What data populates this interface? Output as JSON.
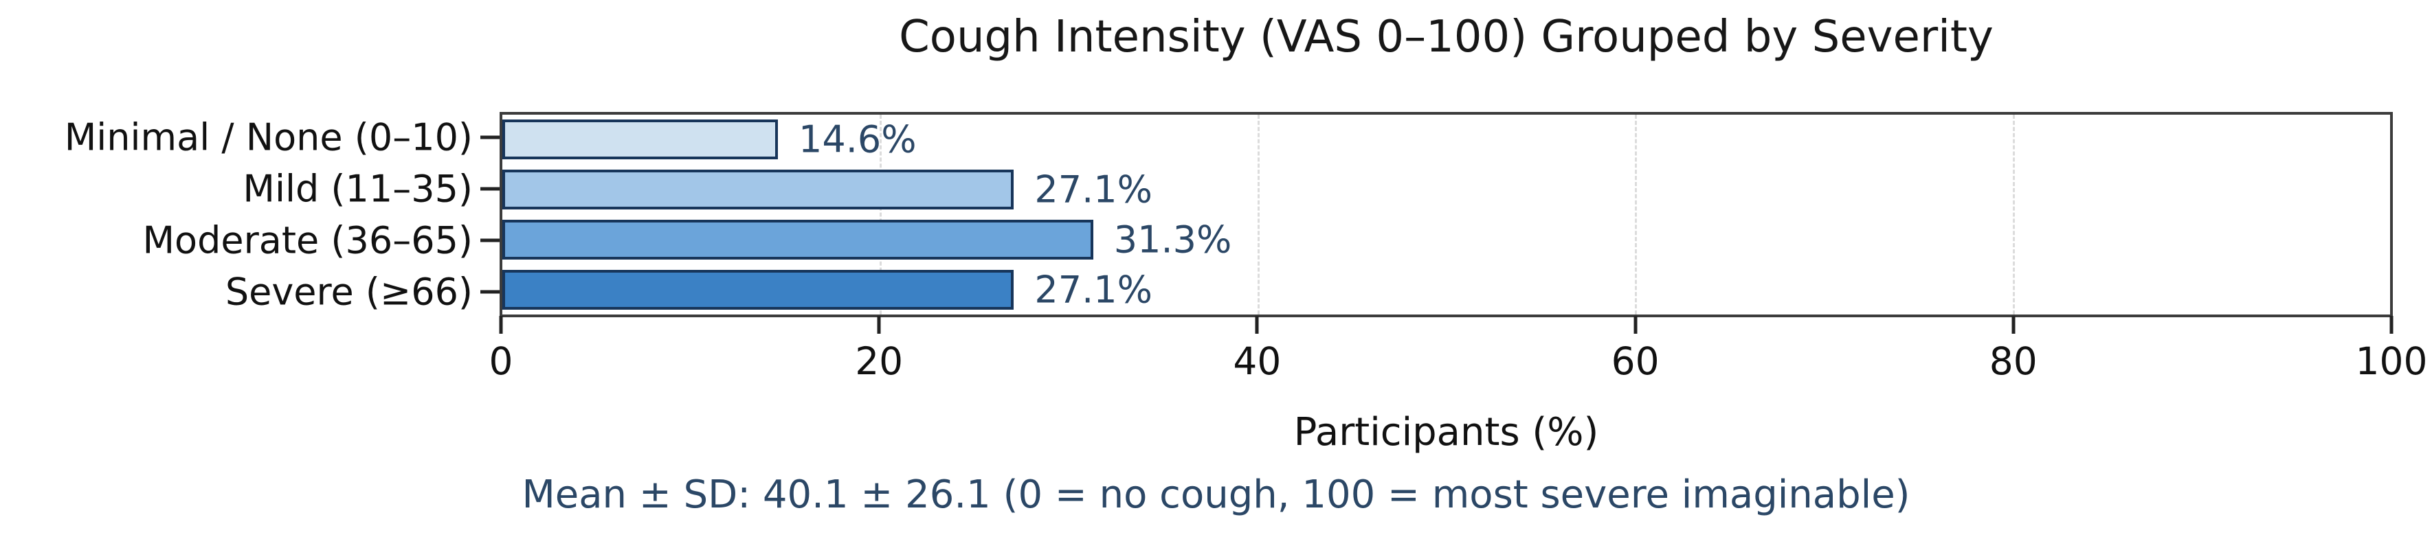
{
  "chart_data": {
    "type": "bar",
    "orientation": "horizontal",
    "title": "Cough Intensity (VAS 0–100) Grouped by Severity",
    "xlabel": "Participants (%)",
    "ylabel": "",
    "categories": [
      "Minimal / None (0–10)",
      "Mild (11–35)",
      "Moderate (36–65)",
      "Severe (≥66)"
    ],
    "values": [
      14.6,
      27.1,
      31.3,
      27.1
    ],
    "value_labels": [
      "14.6%",
      "27.1%",
      "31.3%",
      "27.1%"
    ],
    "xlim": [
      0,
      100
    ],
    "xtick_labels": [
      "0",
      "20",
      "40",
      "60",
      "80",
      "100"
    ],
    "xticks": [
      0,
      20,
      40,
      60,
      80,
      100
    ],
    "grid": "vertical dashed gridlines at 20, 40, 60, 80",
    "legend": "none",
    "annotation": "Mean ± SD: 40.1 ± 26.1 (0 = no cough, 100 = most severe imaginable)",
    "colors": {
      "bar_fills": [
        "#cfe1f0",
        "#a2c6e8",
        "#6ba4da",
        "#3b81c5"
      ],
      "bar_edge": "#17355a",
      "value_label": "#2b4766",
      "annotation": "#2b4766",
      "grid": "#dcdcdc",
      "spine": "#3c3c3c",
      "text": "#111111",
      "background": "#ffffff"
    }
  }
}
